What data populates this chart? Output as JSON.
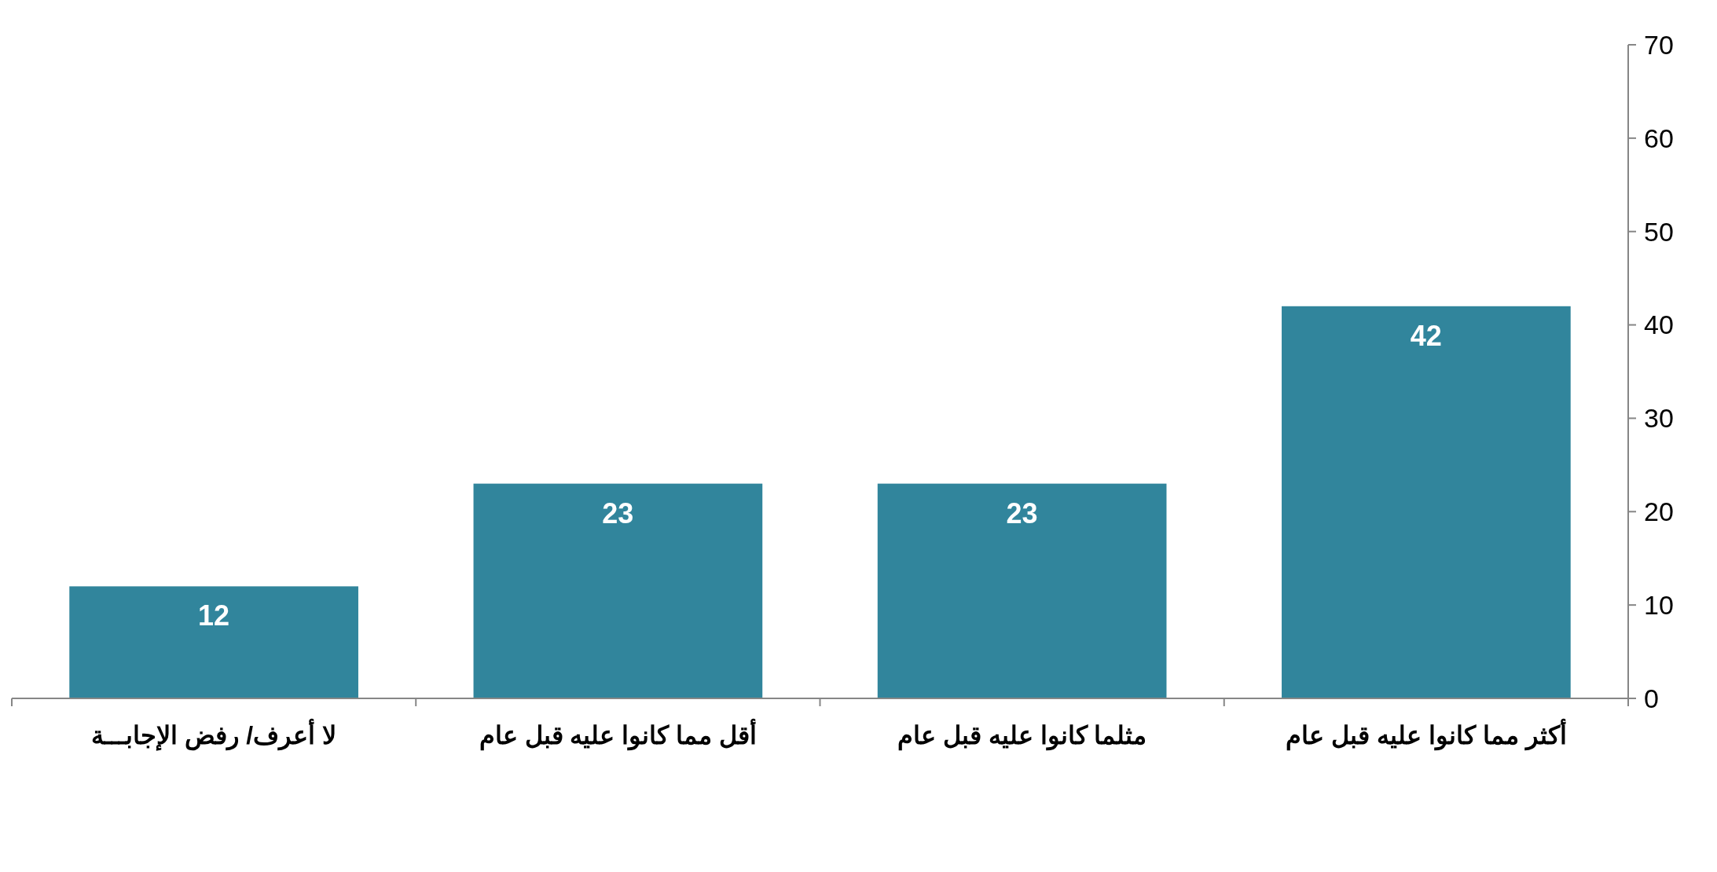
{
  "chart_data": {
    "type": "bar",
    "categories": [
      "لا أعرف/ رفض الإجابـــة",
      "أقل مما كانوا عليه قبل عام",
      "مثلما كانوا عليه قبل عام",
      "أكثر مما كانوا عليه قبل عام"
    ],
    "values": [
      12,
      23,
      23,
      42
    ],
    "color": "#31859c",
    "ylim": [
      0,
      70
    ],
    "yticks": [
      0,
      10,
      20,
      30,
      40,
      50,
      60,
      70
    ],
    "grid": false,
    "data_labels": true
  }
}
